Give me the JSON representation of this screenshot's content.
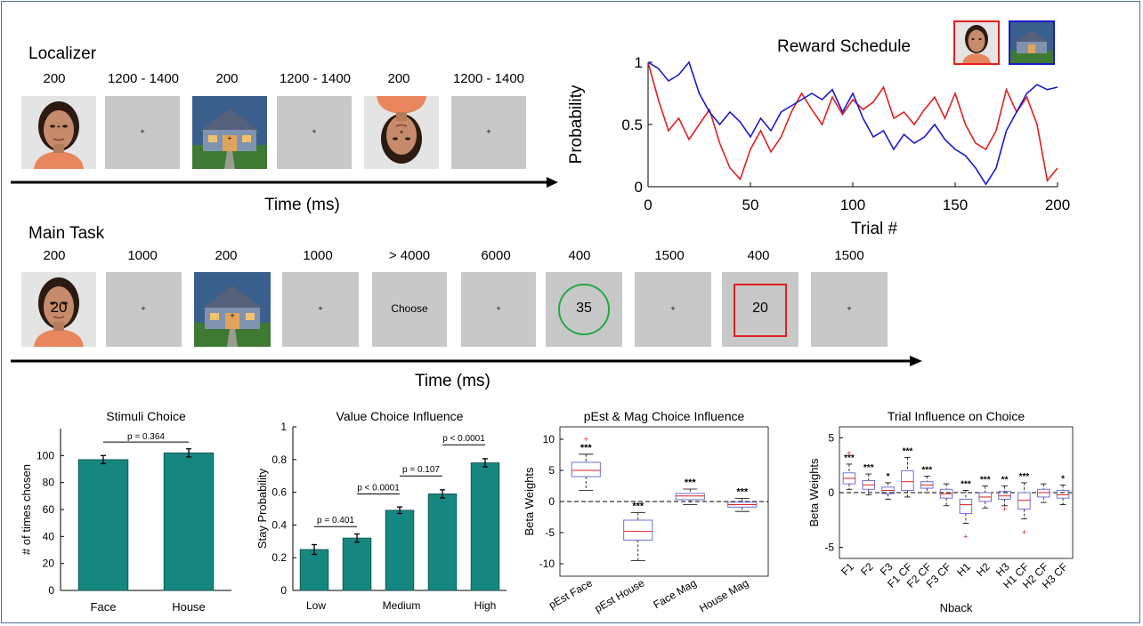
{
  "localizer": {
    "title": "Localizer",
    "durations": [
      "200",
      "1200 - 1400",
      "200",
      "1200 - 1400",
      "200",
      "1200 - 1400"
    ],
    "time_label": "Time (ms)"
  },
  "main_task": {
    "title": "Main Task",
    "durations": [
      "200",
      "1000",
      "200",
      "1000",
      "> 4000",
      "6000",
      "400",
      "1500",
      "400",
      "1500"
    ],
    "face_number": "20",
    "choose_label": "Choose",
    "circle_number": "35",
    "square_number": "20",
    "time_label": "Time (ms)",
    "colors": {
      "circle": "#22aa44",
      "square": "#e02020"
    }
  },
  "reward_schedule": {
    "title": "Reward Schedule",
    "ylabel": "Probability",
    "xlabel": "Trial #",
    "y_ticks": [
      "0",
      "0.5",
      "1"
    ],
    "x_ticks": [
      "0",
      "50",
      "100",
      "150",
      "200"
    ],
    "face_color": "#e02020",
    "house_color": "#1a1acc"
  },
  "chart_data": [
    {
      "type": "line",
      "title": "Reward Schedule",
      "xlabel": "Trial #",
      "ylabel": "Probability",
      "xlim": [
        0,
        200
      ],
      "ylim": [
        0,
        1
      ],
      "series": [
        {
          "name": "Face",
          "color": "#e02020",
          "x": [
            0,
            5,
            10,
            15,
            20,
            25,
            30,
            35,
            40,
            45,
            50,
            55,
            60,
            65,
            70,
            75,
            80,
            85,
            90,
            95,
            100,
            105,
            110,
            115,
            120,
            125,
            130,
            135,
            140,
            145,
            150,
            155,
            160,
            165,
            170,
            175,
            180,
            185,
            190,
            195,
            200
          ],
          "y": [
            1.0,
            0.7,
            0.45,
            0.55,
            0.38,
            0.5,
            0.62,
            0.35,
            0.15,
            0.06,
            0.3,
            0.45,
            0.28,
            0.4,
            0.6,
            0.75,
            0.62,
            0.5,
            0.72,
            0.58,
            0.7,
            0.62,
            0.68,
            0.8,
            0.55,
            0.6,
            0.5,
            0.62,
            0.72,
            0.55,
            0.75,
            0.5,
            0.35,
            0.3,
            0.45,
            0.78,
            0.6,
            0.72,
            0.5,
            0.05,
            0.15
          ]
        },
        {
          "name": "House",
          "color": "#1a1acc",
          "x": [
            0,
            5,
            10,
            15,
            20,
            25,
            30,
            35,
            40,
            45,
            50,
            55,
            60,
            65,
            70,
            75,
            80,
            85,
            90,
            95,
            100,
            105,
            110,
            115,
            120,
            125,
            130,
            135,
            140,
            145,
            150,
            155,
            160,
            165,
            170,
            175,
            180,
            185,
            190,
            195,
            200
          ],
          "y": [
            1.0,
            0.95,
            0.85,
            0.9,
            1.0,
            0.75,
            0.6,
            0.5,
            0.6,
            0.52,
            0.4,
            0.55,
            0.45,
            0.6,
            0.65,
            0.7,
            0.75,
            0.7,
            0.78,
            0.6,
            0.75,
            0.55,
            0.4,
            0.45,
            0.3,
            0.42,
            0.35,
            0.4,
            0.5,
            0.38,
            0.3,
            0.25,
            0.15,
            0.02,
            0.15,
            0.45,
            0.6,
            0.75,
            0.82,
            0.78,
            0.8
          ]
        }
      ]
    },
    {
      "type": "bar",
      "title": "Stimuli Choice",
      "ylabel": "# of times chosen",
      "categories": [
        "Face",
        "House"
      ],
      "values": [
        97,
        102
      ],
      "errors": [
        3,
        3
      ],
      "ylim": [
        0,
        120
      ],
      "y_ticks": [
        "0",
        "20",
        "40",
        "60",
        "80",
        "100"
      ],
      "annotations": [
        "p = 0.364"
      ],
      "color": "#168780"
    },
    {
      "type": "bar",
      "title": "Value Choice Influence",
      "ylabel": "Stay Probability",
      "categories": [
        "1",
        "2",
        "3",
        "4",
        "5"
      ],
      "x_tick_labels": [
        "Low",
        "Medium",
        "High"
      ],
      "values": [
        0.25,
        0.32,
        0.49,
        0.59,
        0.78
      ],
      "errors": [
        0.03,
        0.025,
        0.02,
        0.025,
        0.025
      ],
      "ylim": [
        0,
        1
      ],
      "y_ticks": [
        "0",
        "0.2",
        "0.4",
        "0.6",
        "0.8",
        "1"
      ],
      "annotations": [
        "p = 0.401",
        "p < 0.0001",
        "p = 0.107",
        "p < 0.0001"
      ],
      "color": "#168780"
    },
    {
      "type": "box",
      "title": "pEst & Mag Choice Influence",
      "ylabel": "Beta Weights",
      "categories": [
        "pEst Face",
        "pEst House",
        "Face Mag",
        "House Mag"
      ],
      "ylim": [
        -12,
        12
      ],
      "y_ticks": [
        "-10",
        "-5",
        "0",
        "5",
        "10"
      ],
      "boxes": [
        {
          "whisker_low": 1.8,
          "q1": 4.0,
          "median": 5.0,
          "q3": 6.3,
          "whisker_high": 7.6,
          "outliers": [
            10.0
          ],
          "sig": "***"
        },
        {
          "whisker_low": -9.5,
          "q1": -6.2,
          "median": -4.8,
          "q3": -3.0,
          "whisker_high": -1.8,
          "outliers": [],
          "sig": "***"
        },
        {
          "whisker_low": -0.5,
          "q1": 0.3,
          "median": 0.9,
          "q3": 1.3,
          "whisker_high": 2.0,
          "outliers": [],
          "sig": "***"
        },
        {
          "whisker_low": -1.6,
          "q1": -0.9,
          "median": -0.5,
          "q3": -0.1,
          "whisker_high": 0.5,
          "outliers": [],
          "sig": "***"
        }
      ]
    },
    {
      "type": "box",
      "title": "Trial Influence on Choice",
      "ylabel": "Beta Weights",
      "xlabel": "Nback",
      "categories": [
        "F1",
        "F2",
        "F3",
        "F1 CF",
        "F2 CF",
        "F3 CF",
        "H1",
        "H2",
        "H3",
        "H1 CF",
        "H2 CF",
        "H3 CF"
      ],
      "ylim": [
        -6,
        6
      ],
      "y_ticks": [
        "-5",
        "0",
        "5"
      ],
      "boxes": [
        {
          "whisker_low": 0.3,
          "q1": 0.8,
          "median": 1.3,
          "q3": 1.8,
          "whisker_high": 2.6,
          "outliers": [
            3.6
          ],
          "sig": "***"
        },
        {
          "whisker_low": -0.2,
          "q1": 0.3,
          "median": 0.7,
          "q3": 1.1,
          "whisker_high": 1.7,
          "outliers": [],
          "sig": "***"
        },
        {
          "whisker_low": -0.6,
          "q1": -0.1,
          "median": 0.2,
          "q3": 0.5,
          "whisker_high": 0.9,
          "outliers": [],
          "sig": "*"
        },
        {
          "whisker_low": -0.4,
          "q1": 0.2,
          "median": 1.0,
          "q3": 2.0,
          "whisker_high": 3.2,
          "outliers": [],
          "sig": "***"
        },
        {
          "whisker_low": 0.0,
          "q1": 0.4,
          "median": 0.7,
          "q3": 1.0,
          "whisker_high": 1.5,
          "outliers": [],
          "sig": "***"
        },
        {
          "whisker_low": -1.2,
          "q1": -0.5,
          "median": -0.1,
          "q3": 0.3,
          "whisker_high": 0.8,
          "outliers": [],
          "sig": ""
        },
        {
          "whisker_low": -2.8,
          "q1": -1.9,
          "median": -1.1,
          "q3": -0.6,
          "whisker_high": 0.2,
          "outliers": [
            -4.0
          ],
          "sig": "***"
        },
        {
          "whisker_low": -1.4,
          "q1": -0.8,
          "median": -0.4,
          "q3": 0.0,
          "whisker_high": 0.6,
          "outliers": [],
          "sig": "***"
        },
        {
          "whisker_low": -1.2,
          "q1": -0.6,
          "median": -0.3,
          "q3": 0.1,
          "whisker_high": 0.6,
          "outliers": [
            -1.5
          ],
          "sig": "**"
        },
        {
          "whisker_low": -2.4,
          "q1": -1.5,
          "median": -0.7,
          "q3": 0.0,
          "whisker_high": 0.9,
          "outliers": [
            -3.6
          ],
          "sig": "***"
        },
        {
          "whisker_low": -0.9,
          "q1": -0.4,
          "median": 0.0,
          "q3": 0.3,
          "whisker_high": 0.8,
          "outliers": [],
          "sig": ""
        },
        {
          "whisker_low": -1.1,
          "q1": -0.5,
          "median": -0.2,
          "q3": 0.2,
          "whisker_high": 0.7,
          "outliers": [],
          "sig": "*"
        }
      ]
    }
  ]
}
